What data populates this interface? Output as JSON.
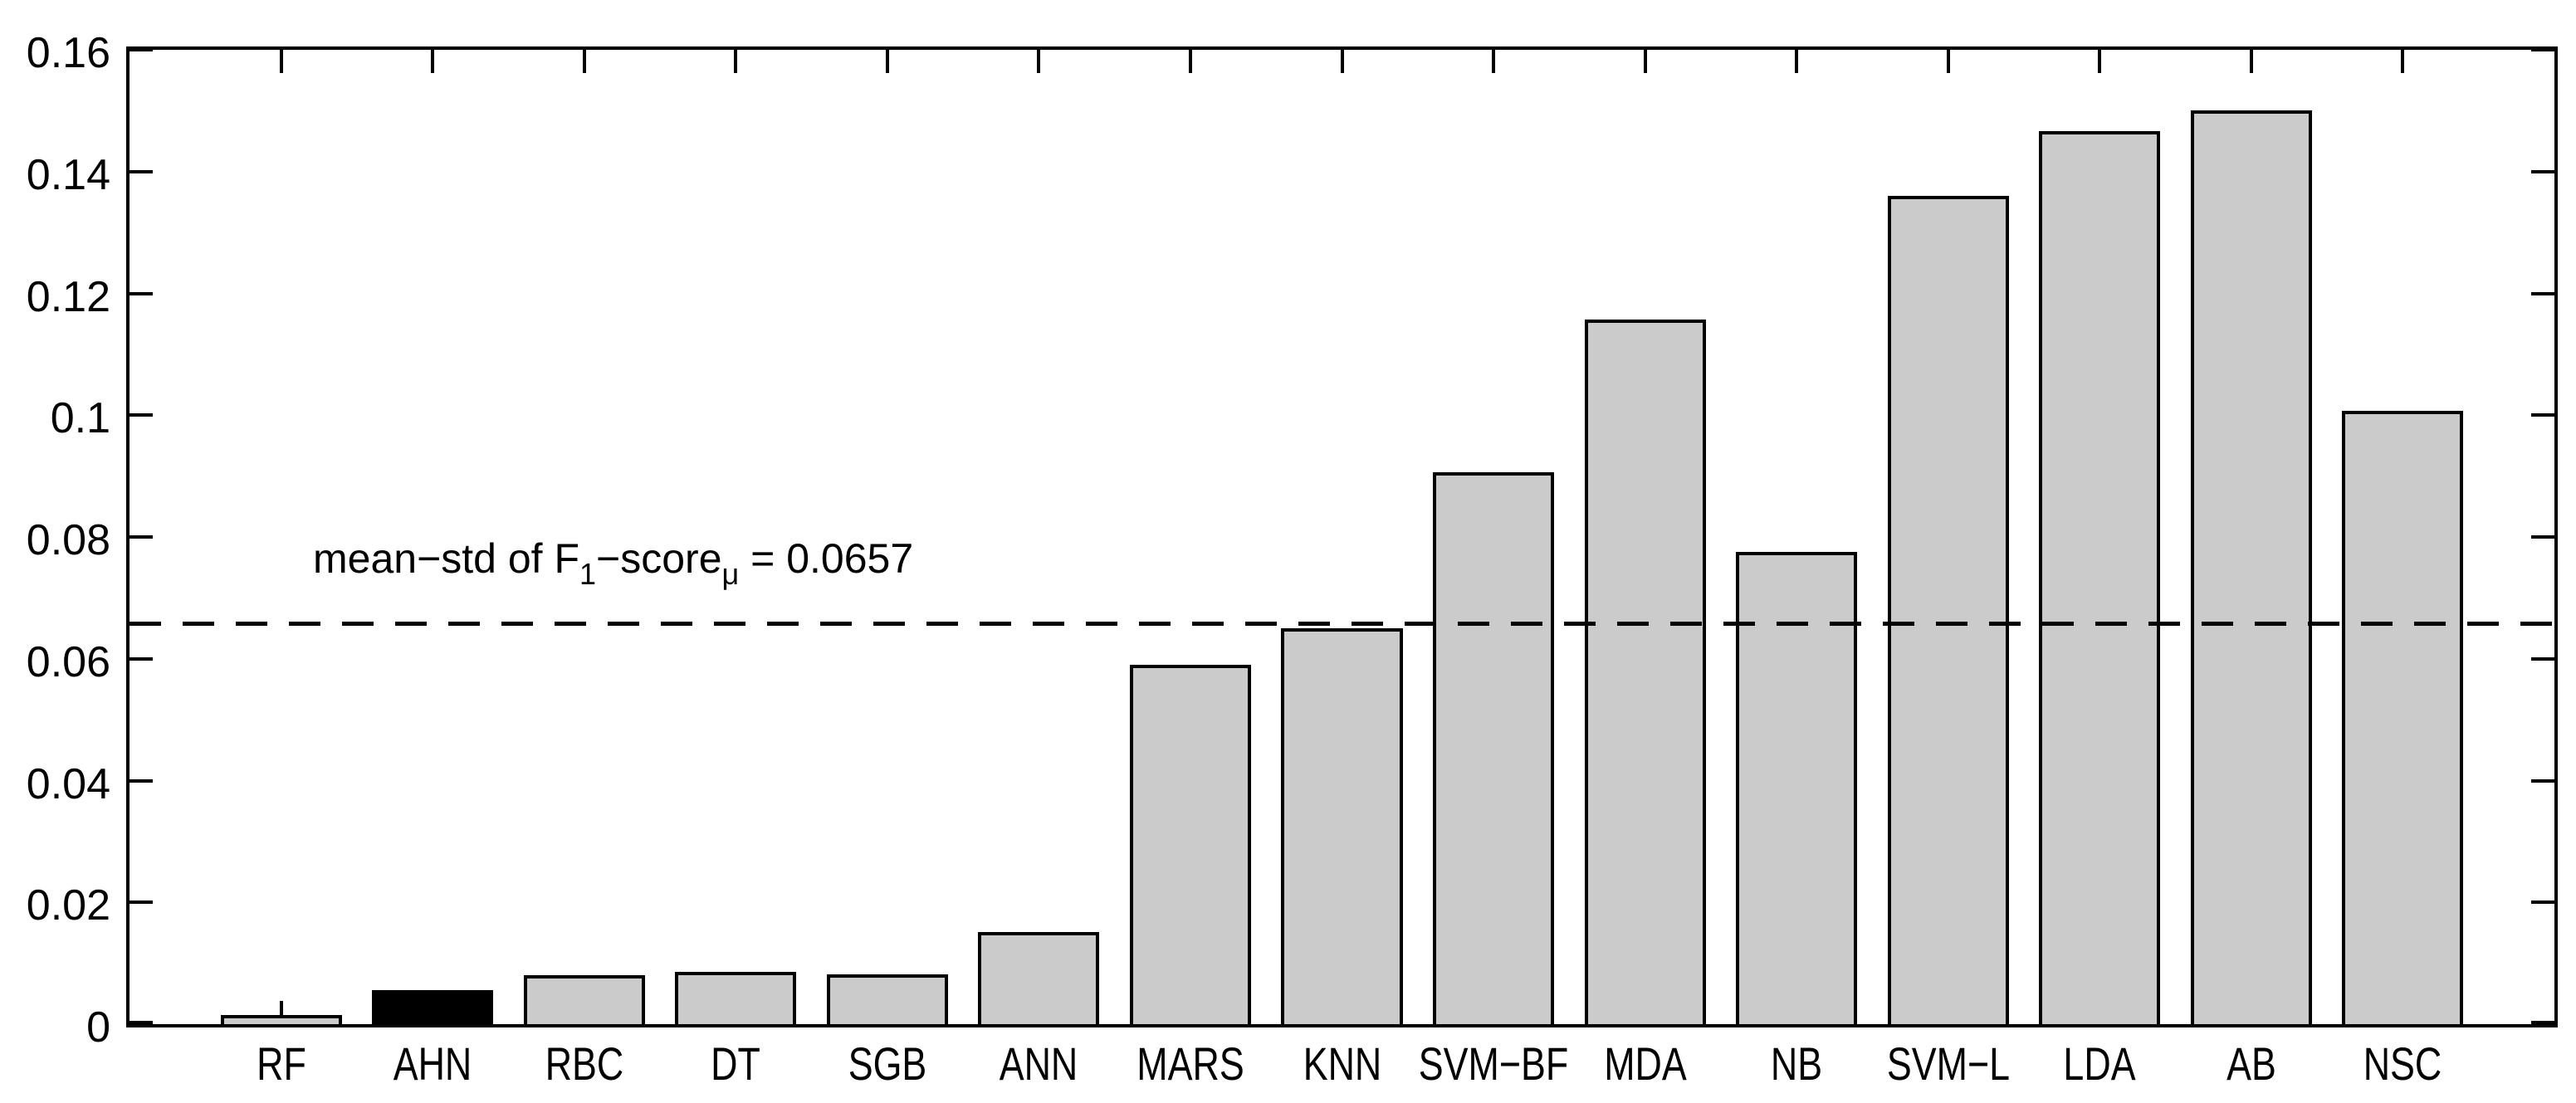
{
  "chart_data": {
    "type": "bar",
    "title": "",
    "xlabel": "",
    "ylabel": "",
    "categories": [
      "RF",
      "AHN",
      "RBC",
      "DT",
      "SGB",
      "ANN",
      "MARS",
      "KNN",
      "SVM−BF",
      "MDA",
      "NB",
      "SVM−L",
      "LDA",
      "AB",
      "NSC"
    ],
    "values": [
      0.0015,
      0.0056,
      0.008,
      0.0086,
      0.0082,
      0.0151,
      0.059,
      0.065,
      0.0906,
      0.1157,
      0.0776,
      0.136,
      0.1466,
      0.1501,
      0.1007
    ],
    "highlighted_category": "AHN",
    "bar_color": "#cbcbcb",
    "highlight_color": "#000000",
    "edge_color": "#000000",
    "ylim": [
      0,
      0.16
    ],
    "yticks": [
      0,
      0.02,
      0.04,
      0.06,
      0.08,
      0.1,
      0.12,
      0.14,
      0.16
    ],
    "ytick_labels": [
      "0",
      "0.02",
      "0.04",
      "0.06",
      "0.08",
      "0.1",
      "0.12",
      "0.14",
      "0.16"
    ],
    "grid": false,
    "legend": "none",
    "bar_width_fraction": 0.8,
    "x_slots": 16,
    "threshold_line": {
      "value": 0.0657,
      "style": "dashed",
      "color": "#000000",
      "label_text": "mean−std of F1−scoreμ = 0.0657"
    },
    "annotation": {
      "prefix": "mean−std of F",
      "sub1": "1",
      "mid": "−score",
      "sub2": "μ",
      "suffix": " = 0.0657"
    }
  }
}
